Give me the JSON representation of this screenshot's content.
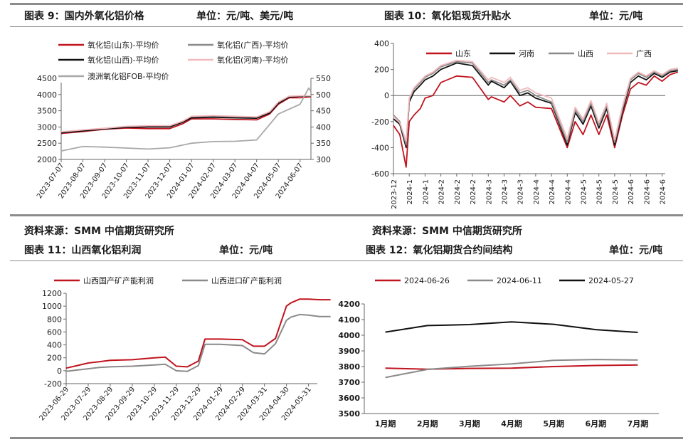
{
  "panels": {
    "p1": {
      "title": "图表 9：国内外氧化铝价格",
      "unit": "单位：元/吨、美元/吨"
    },
    "p2": {
      "title": "图表 10：氧化铝现货升贴水",
      "unit": "单位：元/吨"
    },
    "p3": {
      "title": "图表 11：山西氧化铝利润",
      "unit": "单位：元/吨"
    },
    "p4": {
      "title": "图表 12：氧化铝期货合约间结构",
      "unit": "单位：元/吨"
    }
  },
  "sources": {
    "left": "资料来源：SMM 中信期货研究所",
    "right": "资料来源：SMM 中信期货研究所"
  },
  "chart_data": [
    {
      "type": "line",
      "x_ticks": [
        "2023-07-07",
        "2023-08-07",
        "2023-09-07",
        "2023-10-07",
        "2023-11-07",
        "2023-12-07",
        "2024-01-07",
        "2024-02-07",
        "2024-03-07",
        "2024-04-07",
        "2024-05-07",
        "2024-06-07"
      ],
      "ylim": [
        2000,
        4500
      ],
      "y_ticks": [
        2000,
        2500,
        3000,
        3500,
        4000,
        4500
      ],
      "y2lim": [
        300,
        550
      ],
      "y2_ticks": [
        300,
        350,
        400,
        450,
        500,
        550
      ],
      "legend_position": "top-left",
      "series": [
        {
          "name": "氧化铝(山东)-平均价",
          "color": "#c0141f",
          "axis": "left",
          "x": [
            0,
            1,
            2,
            3,
            4,
            5,
            5.6,
            6,
            7,
            8,
            9,
            9.6,
            10,
            10.5,
            11,
            11.5
          ],
          "values": [
            2800,
            2860,
            2930,
            2970,
            2950,
            2950,
            3100,
            3250,
            3250,
            3230,
            3220,
            3400,
            3700,
            3900,
            3900,
            3930
          ]
        },
        {
          "name": "氧化铝(广西)-平均价",
          "color": "#8a8a8a",
          "axis": "left",
          "x": [
            0,
            1,
            2,
            3,
            4,
            5,
            5.6,
            6,
            7,
            8,
            9,
            9.6,
            10,
            10.5,
            11,
            11.5
          ],
          "values": [
            2830,
            2890,
            2950,
            3000,
            3020,
            3020,
            3150,
            3300,
            3320,
            3300,
            3290,
            3450,
            3750,
            3930,
            3950,
            3950
          ]
        },
        {
          "name": "氧化铝(山西)-平均价",
          "color": "#111111",
          "axis": "left",
          "x": [
            0,
            1,
            2,
            3,
            4,
            5,
            5.6,
            6,
            7,
            8,
            9,
            9.6,
            10,
            10.5,
            11,
            11.5
          ],
          "values": [
            2820,
            2880,
            2940,
            2990,
            3000,
            3000,
            3150,
            3280,
            3300,
            3280,
            3270,
            3430,
            3730,
            3920,
            3950,
            3950
          ]
        },
        {
          "name": "氧化铝(河南)-平均价",
          "color": "#f2b9bd",
          "axis": "left",
          "x": [
            0,
            1,
            2,
            3,
            4,
            5,
            5.6,
            6,
            7,
            8,
            9,
            9.6,
            10,
            10.5,
            11,
            11.5
          ],
          "values": [
            2850,
            2910,
            2960,
            3020,
            3040,
            3040,
            3180,
            3330,
            3350,
            3330,
            3310,
            3470,
            3770,
            3950,
            3960,
            3960
          ]
        },
        {
          "name": "澳洲氧化铝FOB-平均价",
          "color": "#a8a8a8",
          "axis": "right",
          "x": [
            0,
            1,
            2,
            3,
            4,
            5,
            6,
            7,
            8,
            9,
            9.5,
            10,
            10.5,
            11,
            11.4,
            11.5
          ],
          "values": [
            326,
            340,
            338,
            335,
            332,
            336,
            350,
            355,
            356,
            360,
            400,
            440,
            455,
            470,
            520,
            510
          ]
        }
      ]
    },
    {
      "type": "line",
      "x_ticks": [
        "2023-12",
        "2024-1",
        "2024-1",
        "2024-2",
        "2024-2",
        "2024-2",
        "2024-3",
        "2024-3",
        "2024-3",
        "2024-4",
        "2024-4",
        "2024-4",
        "2024-5",
        "2024-5",
        "2024-5",
        "2024-6",
        "2024-6",
        "2024-6"
      ],
      "ylim": [
        -600,
        400
      ],
      "y_ticks": [
        -600,
        -400,
        -200,
        0,
        200,
        400
      ],
      "legend_position": "top",
      "series": [
        {
          "name": "山东",
          "color": "#c0141f",
          "x": [
            0,
            0.4,
            0.8,
            1,
            1.3,
            1.7,
            2,
            2.5,
            3,
            4,
            5,
            6,
            6.2,
            7,
            7.4,
            8,
            8.5,
            9,
            10,
            11,
            11.5,
            12,
            12.5,
            13,
            13.5,
            14,
            14.5,
            15,
            15.5,
            16,
            16.5,
            17,
            17.5,
            18
          ],
          "values": [
            -230,
            -300,
            -550,
            -200,
            -150,
            -100,
            -20,
            0,
            100,
            150,
            140,
            -30,
            -10,
            -50,
            0,
            -80,
            -50,
            -90,
            -100,
            -400,
            -200,
            -300,
            -150,
            -300,
            -150,
            -400,
            -150,
            50,
            100,
            80,
            150,
            110,
            160,
            180
          ]
        },
        {
          "name": "河南",
          "color": "#111111",
          "x": [
            0,
            0.4,
            0.8,
            1,
            1.3,
            1.7,
            2,
            2.5,
            3,
            4,
            5,
            6,
            6.2,
            7,
            7.4,
            8,
            8.5,
            9,
            10,
            11,
            11.5,
            12,
            12.5,
            13,
            13.5,
            14,
            14.5,
            15,
            15.5,
            16,
            16.5,
            17,
            17.5,
            18
          ],
          "values": [
            -180,
            -220,
            -400,
            -50,
            30,
            80,
            120,
            150,
            200,
            250,
            230,
            80,
            110,
            60,
            110,
            0,
            20,
            -20,
            -60,
            -380,
            -130,
            -220,
            -80,
            -250,
            -100,
            -380,
            -120,
            100,
            150,
            120,
            170,
            140,
            180,
            190
          ]
        },
        {
          "name": "山西",
          "color": "#8a8a8a",
          "x": [
            0,
            0.4,
            0.8,
            1,
            1.3,
            1.7,
            2,
            2.5,
            3,
            4,
            5,
            6,
            6.2,
            7,
            7.4,
            8,
            8.5,
            9,
            10,
            11,
            11.5,
            12,
            12.5,
            13,
            13.5,
            14,
            14.5,
            15,
            15.5,
            16,
            16.5,
            17,
            17.5,
            18
          ],
          "values": [
            -150,
            -200,
            -380,
            -30,
            50,
            100,
            140,
            170,
            220,
            260,
            250,
            100,
            120,
            80,
            120,
            20,
            40,
            0,
            -50,
            -360,
            -110,
            -200,
            -60,
            -230,
            -80,
            -360,
            -100,
            120,
            170,
            140,
            180,
            150,
            190,
            200
          ]
        },
        {
          "name": "广西",
          "color": "#f2b9bd",
          "x": [
            0,
            0.4,
            0.8,
            1,
            1.3,
            1.7,
            2,
            2.5,
            3,
            4,
            5,
            6,
            6.2,
            7,
            7.4,
            8,
            8.5,
            9,
            10,
            11,
            11.5,
            12,
            12.5,
            13,
            13.5,
            14,
            14.5,
            15,
            15.5,
            16,
            16.5,
            17,
            17.5,
            18
          ],
          "values": [
            -160,
            -210,
            -350,
            -20,
            60,
            110,
            150,
            180,
            230,
            270,
            260,
            120,
            140,
            100,
            140,
            40,
            60,
            20,
            -20,
            -330,
            -90,
            -180,
            -40,
            -210,
            -60,
            -340,
            -80,
            130,
            180,
            150,
            190,
            160,
            200,
            210
          ]
        }
      ]
    },
    {
      "type": "line",
      "x_ticks": [
        "2023-06-29",
        "2023-07-29",
        "2023-08-29",
        "2023-09-29",
        "2023-10-29",
        "2023-11-29",
        "2023-12-29",
        "2024-01-29",
        "2024-02-29",
        "2024-03-31",
        "2024-04-30",
        "2024-05-31"
      ],
      "ylim": [
        -200,
        1200
      ],
      "y_ticks": [
        -200,
        0,
        200,
        400,
        600,
        800,
        1000,
        1200
      ],
      "legend_position": "top-left",
      "series": [
        {
          "name": "山西国产矿产能利润",
          "color": "#c0141f",
          "x": [
            0,
            0.5,
            1,
            1.5,
            2,
            3,
            4,
            4.5,
            5,
            5.5,
            6,
            6.3,
            7,
            8,
            8.5,
            9,
            9.5,
            10,
            10.2,
            10.6,
            11,
            11.5,
            12
          ],
          "values": [
            40,
            80,
            120,
            140,
            160,
            170,
            200,
            210,
            70,
            60,
            150,
            490,
            490,
            480,
            380,
            380,
            500,
            1000,
            1050,
            1110,
            1110,
            1100,
            1100
          ]
        },
        {
          "name": "山西进口矿产能利润",
          "color": "#8a8a8a",
          "x": [
            0,
            0.5,
            1,
            1.5,
            2,
            3,
            4,
            4.5,
            5,
            5.5,
            6,
            6.3,
            7,
            8,
            8.5,
            9,
            9.5,
            10,
            10.2,
            10.6,
            11,
            11.5,
            12
          ],
          "values": [
            -10,
            10,
            30,
            50,
            60,
            70,
            90,
            100,
            0,
            -10,
            80,
            410,
            410,
            390,
            280,
            260,
            420,
            780,
            830,
            870,
            860,
            840,
            840
          ]
        }
      ]
    },
    {
      "type": "line",
      "categories": [
        "1月期",
        "2月期",
        "3月期",
        "4月期",
        "5月期",
        "6月期",
        "7月期"
      ],
      "ylim": [
        3500,
        4200
      ],
      "y_ticks": [
        3500,
        3600,
        3700,
        3800,
        3900,
        4000,
        4100,
        4200
      ],
      "legend_position": "top",
      "series": [
        {
          "name": "2024-06-26",
          "color": "#c0141f",
          "values": [
            3790,
            3783,
            3788,
            3790,
            3800,
            3807,
            3810
          ]
        },
        {
          "name": "2024-06-11",
          "color": "#8a8a8a",
          "values": [
            3730,
            3782,
            3802,
            3817,
            3840,
            3845,
            3842
          ]
        },
        {
          "name": "2024-05-27",
          "color": "#111111",
          "values": [
            4020,
            4062,
            4068,
            4085,
            4070,
            4036,
            4018
          ]
        }
      ]
    }
  ]
}
